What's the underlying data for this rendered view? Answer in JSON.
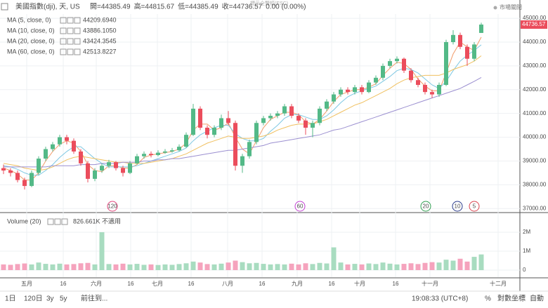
{
  "header": {
    "symbol": "美國指數(dji), 天, US",
    "open_label": "開=",
    "high_label": "高=",
    "low_label": "低=",
    "close_label": "收=",
    "change": "0.00 (0.00%)",
    "zoom_hint": "標示全覽幅(ESC)",
    "market_status": "市場關閉"
  },
  "legend": [
    {
      "name": "MA (5, close, 0)",
      "value": "44209.6940"
    },
    {
      "name": "MA (10, close, 0)",
      "value": "43886.1050"
    },
    {
      "name": "MA (20, close, 0)",
      "value": "43424.3545"
    },
    {
      "name": "MA (60, close, 0)",
      "value": "42513.8227"
    }
  ],
  "chart_data": {
    "type": "candlestick",
    "up_color": "#53b987",
    "down_color": "#eb4d5c",
    "xlim": [
      0,
      74
    ],
    "xticks": [
      {
        "value": 3.8,
        "label": "五月"
      },
      {
        "value": 9,
        "label": "16"
      },
      {
        "value": 13.7,
        "label": "六月"
      },
      {
        "value": 18.6,
        "label": "16"
      },
      {
        "value": 22.4,
        "label": "七月"
      },
      {
        "value": 27.2,
        "label": "16"
      },
      {
        "value": 32.4,
        "label": "八月"
      },
      {
        "value": 37.3,
        "label": "16"
      },
      {
        "value": 42.3,
        "label": "九月"
      },
      {
        "value": 47.2,
        "label": "16"
      },
      {
        "value": 51.2,
        "label": "十月"
      },
      {
        "value": 56.3,
        "label": "16"
      },
      {
        "value": 61.2,
        "label": "十一月"
      },
      {
        "value": 70.9,
        "label": "十二月"
      }
    ],
    "ylim": [
      36860,
      45180
    ],
    "yticks": [
      {
        "value": 37000,
        "label": "37000.00"
      },
      {
        "value": 38000,
        "label": "38000.00"
      },
      {
        "value": 39000,
        "label": "39000.00"
      },
      {
        "value": 40000,
        "label": "40000.00"
      },
      {
        "value": 41000,
        "label": "41000.00"
      },
      {
        "value": 42000,
        "label": "42000.00"
      },
      {
        "value": 43000,
        "label": "43000.00"
      },
      {
        "value": 44000,
        "label": "44000.00"
      },
      {
        "value": 45000,
        "label": "45000.00"
      }
    ],
    "ohlc": [
      [
        38700,
        38850,
        38450,
        38600
      ],
      [
        38600,
        38700,
        38350,
        38500
      ],
      [
        38500,
        38600,
        38100,
        38200
      ],
      [
        38200,
        38300,
        37800,
        37950
      ],
      [
        37950,
        38600,
        37900,
        38500
      ],
      [
        38500,
        39200,
        38400,
        39100
      ],
      [
        39100,
        39600,
        39000,
        39500
      ],
      [
        39500,
        39800,
        39400,
        39700
      ],
      [
        39700,
        40100,
        39600,
        40000
      ],
      [
        40000,
        40100,
        39700,
        39850
      ],
      [
        39850,
        39950,
        39300,
        39400
      ],
      [
        39400,
        39500,
        38800,
        38900
      ],
      [
        38900,
        39000,
        38100,
        38250
      ],
      [
        38250,
        38700,
        38150,
        38600
      ],
      [
        38600,
        38900,
        38500,
        38800
      ],
      [
        38800,
        39050,
        38700,
        38950
      ],
      [
        38950,
        39000,
        38600,
        38700
      ],
      [
        38700,
        38800,
        38350,
        38500
      ],
      [
        38500,
        39000,
        38450,
        38900
      ],
      [
        38900,
        39300,
        38850,
        39200
      ],
      [
        39200,
        39400,
        39100,
        39300
      ],
      [
        39300,
        39400,
        39150,
        39250
      ],
      [
        39250,
        39450,
        39200,
        39350
      ],
      [
        39350,
        39500,
        39300,
        39400
      ],
      [
        39400,
        39550,
        39350,
        39450
      ],
      [
        39450,
        39700,
        39400,
        39600
      ],
      [
        39600,
        40200,
        39550,
        40100
      ],
      [
        40100,
        41400,
        40050,
        41200
      ],
      [
        41200,
        41300,
        40300,
        40400
      ],
      [
        40400,
        40500,
        39950,
        40100
      ],
      [
        40100,
        40500,
        40000,
        40400
      ],
      [
        40400,
        40950,
        40300,
        40800
      ],
      [
        40800,
        41100,
        40500,
        40600
      ],
      [
        40600,
        40700,
        38600,
        38800
      ],
      [
        38800,
        39300,
        38500,
        39200
      ],
      [
        39200,
        39900,
        39100,
        39800
      ],
      [
        39800,
        40700,
        39700,
        40600
      ],
      [
        40600,
        40900,
        40500,
        40800
      ],
      [
        40800,
        41000,
        40700,
        40900
      ],
      [
        40900,
        41100,
        40800,
        41000
      ],
      [
        41000,
        41400,
        40900,
        41300
      ],
      [
        41300,
        41400,
        40800,
        40900
      ],
      [
        40900,
        41000,
        40600,
        40700
      ],
      [
        40700,
        40800,
        40100,
        40400
      ],
      [
        40400,
        40700,
        40000,
        40600
      ],
      [
        40600,
        41300,
        40500,
        41200
      ],
      [
        41200,
        41600,
        41100,
        41500
      ],
      [
        41500,
        41900,
        41400,
        41800
      ],
      [
        41800,
        42100,
        41700,
        42000
      ],
      [
        42000,
        42100,
        41800,
        41900
      ],
      [
        41900,
        42200,
        41800,
        42100
      ],
      [
        42100,
        42200,
        41800,
        41900
      ],
      [
        41900,
        42400,
        41850,
        42300
      ],
      [
        42300,
        42600,
        42200,
        42500
      ],
      [
        42500,
        43100,
        42400,
        43000
      ],
      [
        43000,
        43300,
        42900,
        43200
      ],
      [
        43200,
        43400,
        43100,
        43300
      ],
      [
        43300,
        43350,
        42700,
        42800
      ],
      [
        42800,
        42900,
        42300,
        42400
      ],
      [
        42400,
        42500,
        42100,
        42200
      ],
      [
        42200,
        42300,
        41800,
        41900
      ],
      [
        41900,
        42000,
        41650,
        41800
      ],
      [
        41800,
        42300,
        41700,
        42200
      ],
      [
        42200,
        44100,
        42150,
        44000
      ],
      [
        44000,
        44500,
        43900,
        44300
      ],
      [
        44300,
        44400,
        43700,
        43800
      ],
      [
        43800,
        43900,
        43000,
        43300
      ],
      [
        43300,
        44000,
        43200,
        43900
      ],
      [
        44385.49,
        44815.67,
        44385.49,
        44736.57
      ]
    ],
    "series": [
      {
        "name": "MA (5, close, 0)",
        "color": "#f29c6b",
        "values": [
          38700,
          38600,
          38450,
          38200,
          38200,
          38500,
          39000,
          39400,
          39700,
          39850,
          39750,
          39400,
          38850,
          38600,
          38550,
          38800,
          38800,
          38700,
          38700,
          38850,
          39150,
          39250,
          39300,
          39350,
          39400,
          39500,
          39750,
          40300,
          40550,
          40550,
          40300,
          40400,
          40600,
          40000,
          39500,
          39300,
          39850,
          40400,
          40750,
          40900,
          41050,
          41050,
          40950,
          40650,
          40550,
          40750,
          41100,
          41500,
          41800,
          41900,
          42000,
          42000,
          42100,
          42250,
          42600,
          42900,
          43150,
          43100,
          42850,
          42450,
          42150,
          41950,
          41950,
          42700,
          43500,
          44000,
          43800,
          43650,
          44209.694
        ]
      },
      {
        "name": "MA (10, close, 0)",
        "color": "#7ec8e3",
        "values": [
          38800,
          38750,
          38650,
          38500,
          38400,
          38400,
          38600,
          38850,
          39150,
          39400,
          39600,
          39600,
          39350,
          39100,
          38900,
          38750,
          38750,
          38750,
          38750,
          38800,
          38900,
          39000,
          39100,
          39200,
          39300,
          39400,
          39550,
          39850,
          40100,
          40250,
          40400,
          40500,
          40500,
          40150,
          39950,
          39850,
          39850,
          39950,
          40250,
          40500,
          40800,
          40950,
          40950,
          40850,
          40750,
          40750,
          40900,
          41150,
          41450,
          41700,
          41850,
          41950,
          42050,
          42150,
          42350,
          42550,
          42800,
          42900,
          42850,
          42700,
          42450,
          42200,
          42050,
          42350,
          42800,
          43200,
          43450,
          43650,
          43886.105
        ]
      },
      {
        "name": "MA (20, close, 0)",
        "color": "#f0c060",
        "values": [
          38900,
          38850,
          38800,
          38700,
          38650,
          38600,
          38650,
          38750,
          38900,
          39050,
          39150,
          39200,
          39150,
          39100,
          39050,
          39000,
          38950,
          38950,
          38900,
          38900,
          38900,
          38950,
          39000,
          39050,
          39100,
          39200,
          39300,
          39450,
          39600,
          39750,
          39850,
          39950,
          40050,
          40000,
          39950,
          39950,
          40000,
          40050,
          40150,
          40300,
          40400,
          40500,
          40550,
          40550,
          40550,
          40650,
          40750,
          40900,
          41050,
          41200,
          41350,
          41450,
          41600,
          41750,
          41900,
          42050,
          42250,
          42400,
          42500,
          42550,
          42600,
          42600,
          42600,
          42700,
          42850,
          42950,
          43050,
          43200,
          43424.3545
        ]
      },
      {
        "name": "MA (60, close, 0)",
        "color": "#9b8fd0",
        "values": [
          38750,
          38750,
          38750,
          38750,
          38750,
          38750,
          38750,
          38800,
          38800,
          38800,
          38800,
          38850,
          38850,
          38850,
          38900,
          38900,
          38900,
          38950,
          38950,
          38950,
          39000,
          39000,
          39050,
          39050,
          39100,
          39100,
          39150,
          39200,
          39250,
          39300,
          39350,
          39400,
          39450,
          39450,
          39500,
          39550,
          39600,
          39650,
          39750,
          39800,
          39850,
          39900,
          39950,
          40000,
          40050,
          40100,
          40200,
          40300,
          40350,
          40450,
          40550,
          40650,
          40750,
          40850,
          40950,
          41050,
          41150,
          41250,
          41350,
          41450,
          41550,
          41650,
          41750,
          41850,
          41950,
          42050,
          42200,
          42350,
          42513.8227
        ]
      }
    ],
    "volume": {
      "name": "Volume (20)",
      "value_label": "826.661K",
      "status": "不適用",
      "up_color": "#a8dcc0",
      "down_color": "#f5a3bd",
      "ylim": [
        -0.37,
        2.96
      ],
      "yticks": [
        {
          "value": 2,
          "label": "2M"
        },
        {
          "value": 1,
          "label": "1M"
        },
        {
          "value": 0,
          "label": "0"
        }
      ],
      "values": [
        0.3,
        0.28,
        0.32,
        0.35,
        0.3,
        0.4,
        0.33,
        0.3,
        0.34,
        0.3,
        0.32,
        0.36,
        0.38,
        0.3,
        2.0,
        0.32,
        0.3,
        0.34,
        0.3,
        0.33,
        0.28,
        0.3,
        0.27,
        0.3,
        0.28,
        0.32,
        0.36,
        0.45,
        0.4,
        0.32,
        0.3,
        0.34,
        0.4,
        0.5,
        0.42,
        0.36,
        0.38,
        0.33,
        0.3,
        0.32,
        0.3,
        0.34,
        0.3,
        0.36,
        0.32,
        0.38,
        0.35,
        1.2,
        0.4,
        0.3,
        0.33,
        0.3,
        0.35,
        0.32,
        0.4,
        0.34,
        0.3,
        0.33,
        0.36,
        0.32,
        0.38,
        0.42,
        0.4,
        0.55,
        0.5,
        0.6,
        0.45,
        0.7,
        0.826661
      ]
    }
  },
  "markers": [
    {
      "label": "120",
      "color": "#e0457b"
    },
    {
      "label": "60",
      "color": "#c13fd1"
    },
    {
      "label": "20",
      "color": "#2e9e4f"
    },
    {
      "label": "10",
      "color": "#2a3a8a"
    },
    {
      "label": "5",
      "color": "#d9434f"
    }
  ],
  "toolbar": {
    "ranges": [
      "1日",
      "120日",
      "3y",
      "5y"
    ],
    "goto": "前往到...",
    "time": "19:08:33 (UTC+8)",
    "percent": "%",
    "log": "對數坐標",
    "auto": "自動"
  }
}
